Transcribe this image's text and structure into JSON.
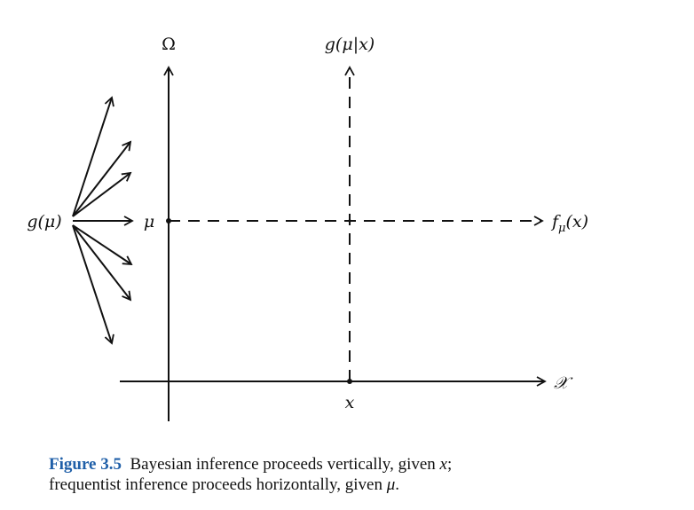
{
  "diagram": {
    "labels": {
      "omega": "Ω",
      "posterior": "g(μ|x)",
      "prior": "g(μ)",
      "mu": "μ",
      "likelihood": "f",
      "likelihood_sub": "μ",
      "likelihood_arg": "(x)",
      "sample_space": "𝒳",
      "x": "x"
    }
  },
  "caption": {
    "label": "Figure 3.5",
    "line1_text": "Bayesian inference proceeds vertically, given ",
    "line1_var": "x",
    "line1_end": ";",
    "line2_text": "frequentist inference proceeds horizontally, given ",
    "line2_var": "μ",
    "line2_end": "."
  }
}
